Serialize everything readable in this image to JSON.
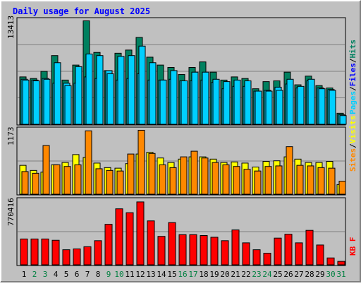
{
  "title": "Daily usage for August 2025",
  "colors": {
    "frame_bg": "#c0c0c0",
    "title": "#0000ff",
    "hits": "#00805f",
    "files": "#00cfff",
    "pages": "#00cfff",
    "visits": "#ffff00",
    "sites": "#ff8800",
    "kbytes": "#ff0000",
    "label_green": "#008040",
    "label_black": "#000000"
  },
  "panels": {
    "top": {
      "ymax_label": "13413",
      "legend": [
        {
          "text": "Pages",
          "color": "#00cfff"
        },
        {
          "text": "/",
          "color": "#000000"
        },
        {
          "text": "Files",
          "color": "#0000ff"
        },
        {
          "text": "/",
          "color": "#000000"
        },
        {
          "text": "Hits",
          "color": "#00805f"
        }
      ]
    },
    "middle": {
      "ymax_label": "1173",
      "legend": [
        {
          "text": "Sites",
          "color": "#ff8800"
        },
        {
          "text": "/",
          "color": "#000000"
        },
        {
          "text": "Visits",
          "color": "#ffff00"
        }
      ]
    },
    "bottom": {
      "ymax_label": "770416",
      "legend": [
        {
          "text": "KB F",
          "color": "#ff0000"
        }
      ]
    }
  },
  "chart_data": [
    {
      "type": "bar",
      "title": "Daily usage for August 2025",
      "categories": [
        "1",
        "2",
        "3",
        "4",
        "5",
        "6",
        "7",
        "8",
        "9",
        "10",
        "11",
        "12",
        "13",
        "14",
        "15",
        "16",
        "17",
        "18",
        "19",
        "20",
        "21",
        "22",
        "23",
        "24",
        "25",
        "26",
        "27",
        "28",
        "29",
        "30",
        "31"
      ],
      "weekend_days": [
        "2",
        "3",
        "9",
        "10",
        "16",
        "17",
        "23",
        "24",
        "30",
        "31"
      ],
      "ylim": [
        0,
        13413
      ],
      "series": [
        {
          "name": "Hits",
          "values": [
            6000,
            5800,
            6700,
            8700,
            5600,
            7500,
            13100,
            9100,
            6800,
            9000,
            9400,
            11000,
            8500,
            7500,
            7200,
            6300,
            7200,
            7900,
            6600,
            5600,
            6000,
            5800,
            4500,
            5400,
            5500,
            6600,
            5000,
            6100,
            4900,
            4600,
            1400
          ]
        },
        {
          "name": "Files",
          "values": [
            5700,
            5600,
            5800,
            5200,
            5200,
            5200,
            6000,
            5800,
            6800,
            5600,
            5800,
            6400,
            5600,
            5600,
            5700,
            5500,
            5500,
            5600,
            5300,
            4500,
            4800,
            4800,
            4200,
            4300,
            4700,
            5100,
            4600,
            5500,
            4600,
            4400,
            1200
          ]
        },
        {
          "name": "Pages",
          "values": [
            5600,
            5500,
            5700,
            7800,
            4900,
            7300,
            8900,
            8700,
            6400,
            8600,
            8700,
            9900,
            7800,
            5600,
            6800,
            5500,
            6600,
            6600,
            5700,
            5400,
            5600,
            5500,
            4200,
            4200,
            4300,
            5700,
            4800,
            5700,
            4500,
            4300,
            1100
          ]
        }
      ]
    },
    {
      "type": "bar",
      "categories": [
        "1",
        "2",
        "3",
        "4",
        "5",
        "6",
        "7",
        "8",
        "9",
        "10",
        "11",
        "12",
        "13",
        "14",
        "15",
        "16",
        "17",
        "18",
        "19",
        "20",
        "21",
        "22",
        "23",
        "24",
        "25",
        "26",
        "27",
        "28",
        "29",
        "30",
        "31"
      ],
      "ylim": [
        0,
        1173
      ],
      "series": [
        {
          "name": "Visits",
          "values": [
            510,
            420,
            390,
            520,
            560,
            700,
            650,
            550,
            470,
            460,
            540,
            710,
            740,
            640,
            560,
            620,
            660,
            660,
            620,
            560,
            570,
            550,
            480,
            580,
            590,
            660,
            620,
            560,
            560,
            580,
            170
          ]
        },
        {
          "name": "Sites",
          "values": [
            400,
            370,
            860,
            520,
            490,
            520,
            1120,
            450,
            420,
            410,
            710,
            1130,
            720,
            520,
            470,
            660,
            760,
            640,
            560,
            520,
            490,
            440,
            410,
            490,
            500,
            840,
            510,
            500,
            470,
            460,
            230
          ]
        }
      ]
    },
    {
      "type": "bar",
      "categories": [
        "1",
        "2",
        "3",
        "4",
        "5",
        "6",
        "7",
        "8",
        "9",
        "10",
        "11",
        "12",
        "13",
        "14",
        "15",
        "16",
        "17",
        "18",
        "19",
        "20",
        "21",
        "22",
        "23",
        "24",
        "25",
        "26",
        "27",
        "28",
        "29",
        "30",
        "31"
      ],
      "ylim": [
        0,
        770416
      ],
      "series": [
        {
          "name": "KB F",
          "values": [
            300000,
            300000,
            300000,
            285000,
            175000,
            185000,
            210000,
            280000,
            470000,
            650000,
            605000,
            730000,
            510000,
            330000,
            490000,
            350000,
            350000,
            340000,
            320000,
            280000,
            405000,
            255000,
            175000,
            135000,
            310000,
            355000,
            255000,
            400000,
            230000,
            80000,
            40000
          ]
        }
      ]
    }
  ]
}
